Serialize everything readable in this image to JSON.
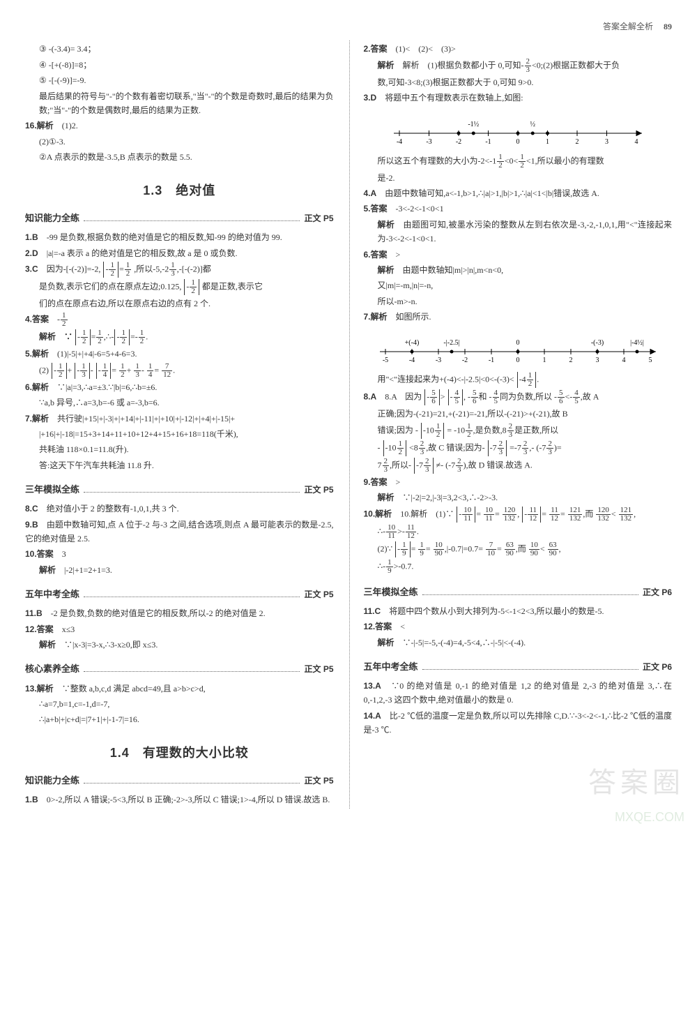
{
  "header": {
    "title": "答案全解全析",
    "page": "89"
  },
  "left": {
    "pre": [
      "③ -(-3.4)= 3.4；",
      "④ -[+(-8)]=8；",
      "⑤ -[-(-9)]=-9.",
      "最后结果的符号与\"-\"的个数有着密切联系,\"当\"-\"的个数是奇数时,最后的结果为负数;\"当\"-\"的个数是偶数时,最后的结果为正数."
    ],
    "q16": {
      "label": "16.解析",
      "a1": "(1)2.",
      "a2": "(2)①-3.",
      "a3": "②A 点表示的数是-3.5,B 点表示的数是 5.5."
    },
    "sec13_title": "1.3　绝对值",
    "sub1": {
      "head": "知识能力全练",
      "ref": "正文 P5"
    },
    "k1": "1.B　-99 是负数,根据负数的绝对值是它的相反数,知-99 的绝对值为 99.",
    "k2": "2.D　|a|=-a 表示 a 的绝对值是它的相反数,故 a 是 0 或负数.",
    "k3a": "3.C　因为-[-(-2)]=-2,",
    "k3b": ",所以-5,-2",
    "k3c": ",-[-(-2)]都",
    "k3d": "是负数,表示它们的点在原点左边;0.125,",
    "k3e": "都是正数,表示它",
    "k3f": "们的点在原点右边,所以在原点右边的点有 2 个.",
    "k4a": "4.答案",
    "k4b": "解析　∵",
    "k5a": "5.解析　(1)|-5|+|+4|-6=5+4-6=3.",
    "k5b": "(2)",
    "k6a": "6.解析　∵|a|=3,∴a=±3.∵|b|=6,∴b=±6.",
    "k6b": "∵a,b 异号,∴a=3,b=-6 或 a=-3,b=6.",
    "k7a": "7.解析　共行驶|+15|+|-3|+|+14|+|-11|+|+10|+|-12|+|+4|+|-15|+",
    "k7b": "|+16|+|-18|=15+3+14+11+10+12+4+15+16+18=118(千米),",
    "k7c": "共耗油 118×0.1=11.8(升).",
    "k7d": "答:这天下午汽车共耗油 11.8 升.",
    "sub2": {
      "head": "三年模拟全练",
      "ref": "正文 P5"
    },
    "m8": "8.C　绝对值小于 2 的整数有-1,0,1,共 3 个.",
    "m9": "9.B　由题中数轴可知,点 A 位于-2 与-3 之间,结合选项,则点 A 最可能表示的数是-2.5,它的绝对值是 2.5.",
    "m10a": "10.答案　3",
    "m10b": "解析　|-2|+1=2+1=3.",
    "sub3": {
      "head": "五年中考全练",
      "ref": "正文 P5"
    },
    "z11": "11.B　-2 是负数,负数的绝对值是它的相反数,所以-2 的绝对值是 2.",
    "z12a": "12.答案　x≤3",
    "z12b": "解析　∵|x-3|=3-x,∴3-x≥0,即 x≤3.",
    "sub4": {
      "head": "核心素养全练",
      "ref": "正文 P5"
    },
    "h13a": "13.解析　∵整数 a,b,c,d 满足 abcd=49,且 a>b>c>d,",
    "h13b": "∴a=7,b=1,c=-1,d=-7,",
    "h13c": "∴|a+b|+|c+d|=|7+1|+|-1-7|=16.",
    "sec14_title": "1.4　有理数的大小比较",
    "sub5": {
      "head": "知识能力全练",
      "ref": "正文 P5"
    },
    "r1": "1.B　0>-2,所以 A 错误;-5<3,所以 B 正确;-2>-3,所以 C 错误;1>-4,所以 D 错误.故选 B."
  },
  "right": {
    "r2a": "2.答案　(1)<　(2)<　(3)>",
    "r2b1": "解析　(1)根据负数都小于 0,可知",
    "r2b2": "<0;(2)根据正数都大于负",
    "r2c": "数,可知-3<8;(3)根据正数都大于 0,可知 9>0.",
    "r3a": "3.D　将题中五个有理数表示在数轴上,如图:",
    "numline1": {
      "min": -4,
      "max": 4,
      "ticks": [
        -4,
        -3,
        -2,
        -1,
        0,
        1,
        2,
        3,
        4
      ],
      "points": [
        -2,
        -1.5,
        0,
        0.5,
        1
      ],
      "ptlabels": [
        "-2",
        "-1½",
        "0",
        "½",
        "1"
      ],
      "toplabels": [
        {
          "x": -1.5,
          "t": "-1½"
        },
        {
          "x": 0.5,
          "t": "½"
        }
      ]
    },
    "r3b1": "所以这五个有理数的大小为-2<-1",
    "r3b2": "<0<",
    "r3b3": "<1,所以最小的有理数",
    "r3c": "是-2.",
    "r4": "4.A　由题中数轴可知,a<-1,b>1,∴|a|>1,|b|>1,∴|a|<1<|b|错误,故选 A.",
    "r5a": "5.答案　-3<-2<-1<0<1",
    "r5b": "解析　由题图可知,被墨水污染的整数从左到右依次是-3,-2,-1,0,1,用\"<\"连接起来为-3<-2<-1<0<1.",
    "r6a": "6.答案　>",
    "r6b": "解析　由题中数轴知|m|>|n|,m<n<0,",
    "r6c": "又|m|=-m,|n|=-n,",
    "r6d": "所以-m>-n.",
    "r7a": "7.解析　如图所示.",
    "numline2": {
      "min": -5,
      "max": 5,
      "ticks": [
        -5,
        -4,
        -3,
        -2,
        -1,
        0,
        1,
        2,
        3,
        4,
        5
      ],
      "points": [
        -4,
        -2.5,
        0,
        3,
        4.5
      ],
      "toplabels": [
        {
          "x": -4,
          "t": "+(-4)"
        },
        {
          "x": -2.5,
          "t": "-|-2.5|"
        },
        {
          "x": 0,
          "t": "0"
        },
        {
          "x": 3,
          "t": "-(-3)"
        },
        {
          "x": 4.5,
          "t": "|-4½|"
        }
      ]
    },
    "r7b1": "用\"<\"连接起来为+(-4)<-|-2.5|<0<-(-3)<",
    "r7b2": ".",
    "r8a1": "8.A　因为",
    "r8a2": ",",
    "r8a3": "和",
    "r8a4": "同为负数,所以",
    "r8a5": ",故 A",
    "r8b": "正确;因为-(-21)=21,+(-21)=-21,所以-(-21)>+(-21),故 B",
    "r8c1": "错误;因为 -",
    "r8c2": "= -10",
    "r8c3": ",是负数,8",
    "r8c4": "是正数,所以",
    "r8d1": "-",
    "r8d2": "<8",
    "r8d3": ",故 C 错误;因为-",
    "r8d4": "=-7",
    "r8d5": ",-",
    "r8d6": "=",
    "r8e1": "7",
    "r8e2": ",所以-",
    "r8e3": "≠-",
    "r8e4": ",故 D 错误.故选 A.",
    "r9a": "9.答案　>",
    "r9b": "解析　∵|-2|=2,|-3|=3,2<3,∴-2>-3.",
    "r10a1": "10.解析　(1)∵",
    "r10a2": "=",
    "r10a3": "=",
    "r10a4": ",",
    "r10a5": "=",
    "r10a6": "=",
    "r10a7": ",而",
    "r10a8": "<",
    "r10a9": ",",
    "r10b1": "∴-",
    "r10b2": ">-",
    "r10b3": ".",
    "r10c1": "(2)∵",
    "r10c2": "=",
    "r10c3": "=",
    "r10c4": ",|-0.7|=0.7=",
    "r10c5": "=",
    "r10c6": ",而",
    "r10c7": "<",
    "r10c8": ",",
    "r10d1": "∴-",
    "r10d2": ">-0.7.",
    "sub6": {
      "head": "三年模拟全练",
      "ref": "正文 P6"
    },
    "m11": "11.C　将题中四个数从小到大排列为-5<-1<2<3,所以最小的数是-5.",
    "m12a": "12.答案　<",
    "m12b": "解析　∵-|-5|=-5,-(-4)=4,-5<4,∴-|-5|<-(-4).",
    "sub7": {
      "head": "五年中考全练",
      "ref": "正文 P6"
    },
    "z13": "13.A　∵0 的绝对值是 0,-1 的绝对值是 1,2 的绝对值是 2,-3 的绝对值是 3,∴在 0,-1,2,-3 这四个数中,绝对值最小的数是 0.",
    "z14": "14.A　比-2 ℃低的温度一定是负数,所以可以先排除 C,D.∵-3<-2<-1,∴比-2 ℃低的温度是-3 ℃."
  }
}
